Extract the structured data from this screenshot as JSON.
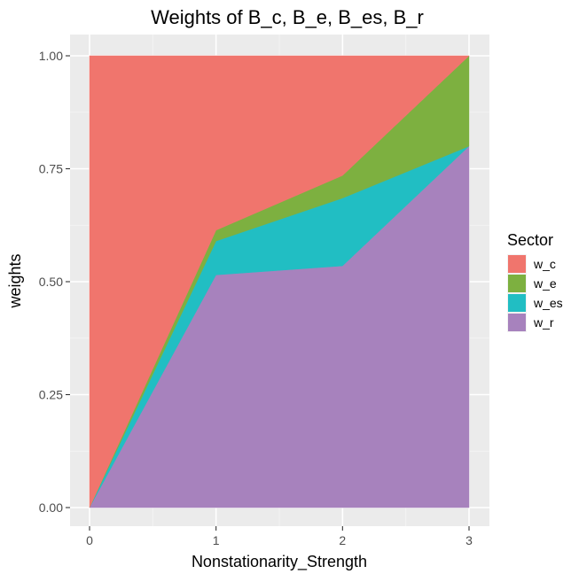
{
  "chart_data": {
    "type": "area",
    "stacked": true,
    "title": "Weights of B_c, B_e, B_es, B_r",
    "xlabel": "Nonstationarity_Strength",
    "ylabel": "weights",
    "x": [
      0,
      1,
      2,
      3
    ],
    "x_ticks": [
      "0",
      "1",
      "2",
      "3"
    ],
    "y_ticks": [
      "0.00",
      "0.25",
      "0.50",
      "0.75",
      "1.00"
    ],
    "xlim": [
      0,
      3
    ],
    "ylim": [
      0,
      1
    ],
    "grid": true,
    "legend": {
      "title": "Sector",
      "position": "right"
    },
    "series": [
      {
        "name": "w_c",
        "color": "#F8766D",
        "values": [
          1.0,
          0.386,
          0.265,
          0.0
        ]
      },
      {
        "name": "w_e",
        "color": "#7CAE00",
        "values": [
          0.0,
          0.024,
          0.05,
          0.2
        ]
      },
      {
        "name": "w_es",
        "color": "#00BFC4",
        "values": [
          0.0,
          0.075,
          0.15,
          0.0
        ]
      },
      {
        "name": "w_r",
        "color": "#C77CFF",
        "values": [
          0.0,
          0.515,
          0.535,
          0.8
        ]
      }
    ],
    "render_colors": {
      "w_c": "#F0756D",
      "w_e": "#7DB040",
      "w_es": "#21BEC3",
      "w_r": "#A782BD"
    }
  }
}
